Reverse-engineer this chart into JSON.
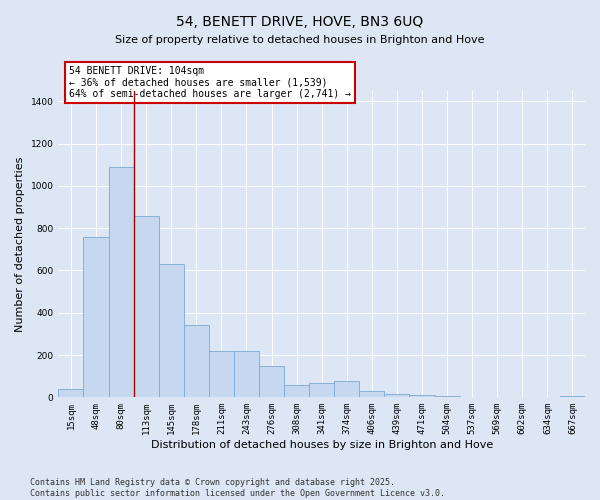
{
  "title": "54, BENETT DRIVE, HOVE, BN3 6UQ",
  "subtitle": "Size of property relative to detached houses in Brighton and Hove",
  "xlabel": "Distribution of detached houses by size in Brighton and Hove",
  "ylabel": "Number of detached properties",
  "categories": [
    "15sqm",
    "48sqm",
    "80sqm",
    "113sqm",
    "145sqm",
    "178sqm",
    "211sqm",
    "243sqm",
    "276sqm",
    "308sqm",
    "341sqm",
    "374sqm",
    "406sqm",
    "439sqm",
    "471sqm",
    "504sqm",
    "537sqm",
    "569sqm",
    "602sqm",
    "634sqm",
    "667sqm"
  ],
  "values": [
    38,
    760,
    1090,
    860,
    630,
    340,
    220,
    220,
    150,
    60,
    70,
    75,
    30,
    18,
    10,
    5,
    2,
    1,
    0,
    0,
    8
  ],
  "bar_color": "#c5d8f0",
  "bar_edge_color": "#7aaad0",
  "vline_x": 2.5,
  "vline_color": "#aa0000",
  "annotation_text": "54 BENETT DRIVE: 104sqm\n← 36% of detached houses are smaller (1,539)\n64% of semi-detached houses are larger (2,741) →",
  "annotation_box_color": "#ffffff",
  "annotation_box_edge_color": "#cc0000",
  "ylim": [
    0,
    1450
  ],
  "yticks": [
    0,
    200,
    400,
    600,
    800,
    1000,
    1200,
    1400
  ],
  "footer": "Contains HM Land Registry data © Crown copyright and database right 2025.\nContains public sector information licensed under the Open Government Licence v3.0.",
  "background_color": "#dce6f5",
  "plot_background_color": "#dce6f5",
  "title_fontsize": 10,
  "axis_label_fontsize": 8,
  "tick_fontsize": 6.5,
  "footer_fontsize": 6,
  "annotation_fontsize": 7
}
